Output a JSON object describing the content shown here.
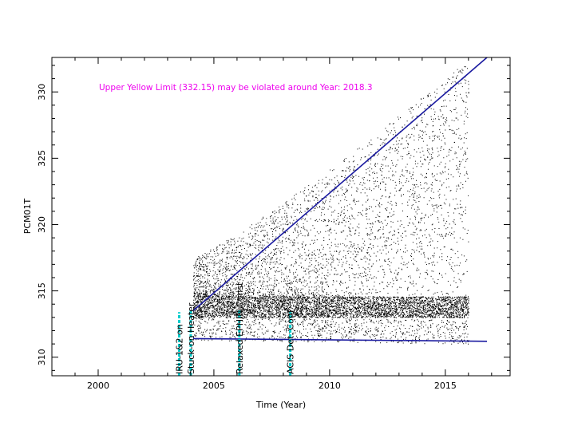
{
  "chart_data": {
    "type": "scatter",
    "title": "",
    "xlabel": "Time (Year)",
    "ylabel": "PCM01T",
    "xlim": [
      1998.0,
      2017.8
    ],
    "ylim": [
      308.6,
      332.6
    ],
    "xticks": [
      2000,
      2005,
      2010,
      2015
    ],
    "yticks": [
      310,
      315,
      320,
      325,
      330
    ],
    "colors": {
      "points": "#000000",
      "trend": "#1a1aa0",
      "events": "#00cccc",
      "annotation": "#ee00ee"
    },
    "annotation": "Upper Yellow  Limit (332.15) may be violated around Year: 2018.3",
    "trend_lines": [
      {
        "x": [
          2004.1,
          2016.8
        ],
        "y": [
          313.5,
          332.6
        ]
      },
      {
        "x": [
          2004.1,
          2016.8
        ],
        "y": [
          311.4,
          311.2
        ]
      }
    ],
    "events": [
      {
        "x": 2003.5,
        "y_top": 313.4,
        "label": "IRU-1&2 on"
      },
      {
        "x": 2004.0,
        "y_top": 313.6,
        "label": "Stuck-on Heater"
      },
      {
        "x": 2006.1,
        "y_top": 313.6,
        "label": "Relaxed EPHIN Const"
      },
      {
        "x": 2008.3,
        "y_top": 313.4,
        "label": "ACIS Det. Conf"
      }
    ],
    "scatter_envelope": {
      "x_start": 2004.1,
      "x_end": 2016.0,
      "core": [
        313.0,
        314.6
      ],
      "lower": [
        311.3,
        311.0
      ],
      "upper": [
        317.5,
        332.5
      ]
    }
  }
}
